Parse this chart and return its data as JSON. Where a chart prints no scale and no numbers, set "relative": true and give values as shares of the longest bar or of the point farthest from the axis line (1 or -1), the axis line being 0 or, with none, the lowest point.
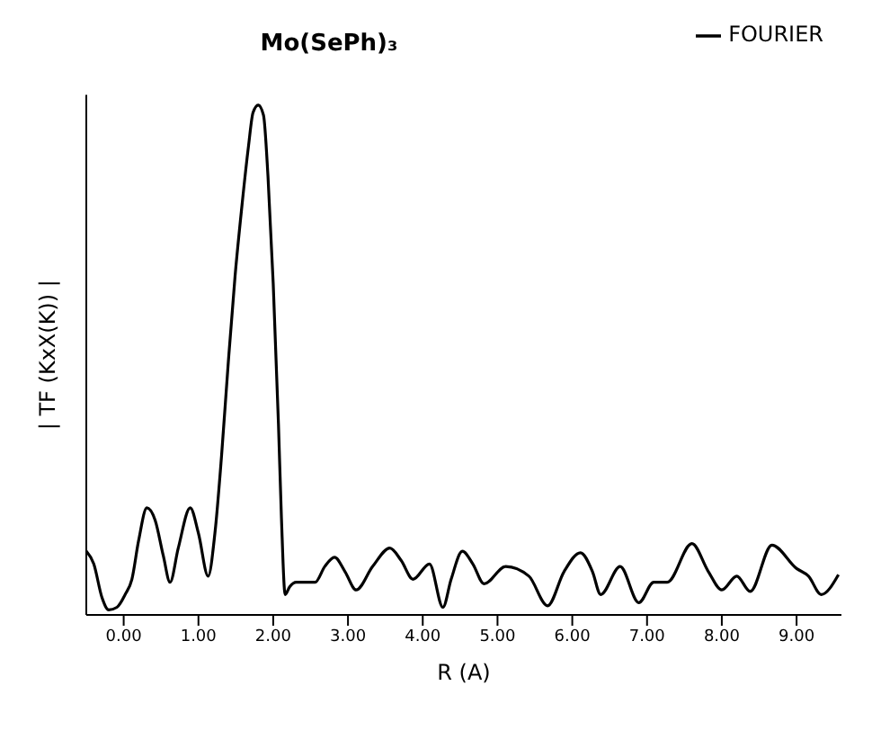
{
  "chart_data": {
    "type": "line",
    "title": "Mo(SePh)₃",
    "xlabel": "R (A)",
    "ylabel": "| TF (KxX(K)) |",
    "relative": true,
    "tick_labels": "x",
    "legend": "top right",
    "marker": "none",
    "line_style": "solid",
    "grid": false,
    "xlim": [
      -0.5,
      9.6
    ],
    "xticks": [
      {
        "value": 0,
        "label": "0.00"
      },
      {
        "value": 1,
        "label": "1.00"
      },
      {
        "value": 2,
        "label": "2.00"
      },
      {
        "value": 3,
        "label": "3.00"
      },
      {
        "value": 4,
        "label": "4.00"
      },
      {
        "value": 5,
        "label": "5.00"
      },
      {
        "value": 6,
        "label": "6.00"
      },
      {
        "value": 7,
        "label": "7.00"
      },
      {
        "value": 8,
        "label": "8.00"
      },
      {
        "value": 9,
        "label": "9.00"
      }
    ],
    "series": [
      {
        "name": "FOURIER",
        "color": "#000000",
        "x": [
          -0.5,
          -0.4,
          -0.29,
          -0.2,
          -0.09,
          0.02,
          0.11,
          0.2,
          0.31,
          0.42,
          0.53,
          0.62,
          0.73,
          0.89,
          1.0,
          1.13,
          1.22,
          1.31,
          1.4,
          1.49,
          1.58,
          1.67,
          1.73,
          1.8,
          1.87,
          1.93,
          2.0,
          2.07,
          2.11,
          2.16,
          2.22,
          2.31,
          2.44,
          2.56,
          2.69,
          2.82,
          2.96,
          3.11,
          3.33,
          3.56,
          3.71,
          3.87,
          4.09,
          4.27,
          4.38,
          4.53,
          4.67,
          4.82,
          5.11,
          5.42,
          5.67,
          5.89,
          6.11,
          6.27,
          6.38,
          6.64,
          6.89,
          7.09,
          7.27,
          7.6,
          7.82,
          8.0,
          8.2,
          8.38,
          8.67,
          9.0,
          9.16,
          9.33,
          9.56
        ],
        "values": [
          0.125,
          0.1,
          0.034,
          0.01,
          0.015,
          0.04,
          0.07,
          0.146,
          0.21,
          0.186,
          0.116,
          0.064,
          0.131,
          0.21,
          0.16,
          0.076,
          0.16,
          0.314,
          0.497,
          0.665,
          0.8,
          0.92,
          0.985,
          1.0,
          0.98,
          0.86,
          0.65,
          0.375,
          0.19,
          0.04,
          0.055,
          0.064,
          0.064,
          0.064,
          0.095,
          0.113,
          0.085,
          0.049,
          0.095,
          0.131,
          0.107,
          0.07,
          0.1,
          0.015,
          0.07,
          0.125,
          0.1,
          0.061,
          0.095,
          0.076,
          0.018,
          0.085,
          0.122,
          0.085,
          0.04,
          0.095,
          0.024,
          0.064,
          0.064,
          0.14,
          0.085,
          0.049,
          0.076,
          0.046,
          0.137,
          0.091,
          0.076,
          0.04,
          0.079
        ]
      }
    ]
  }
}
